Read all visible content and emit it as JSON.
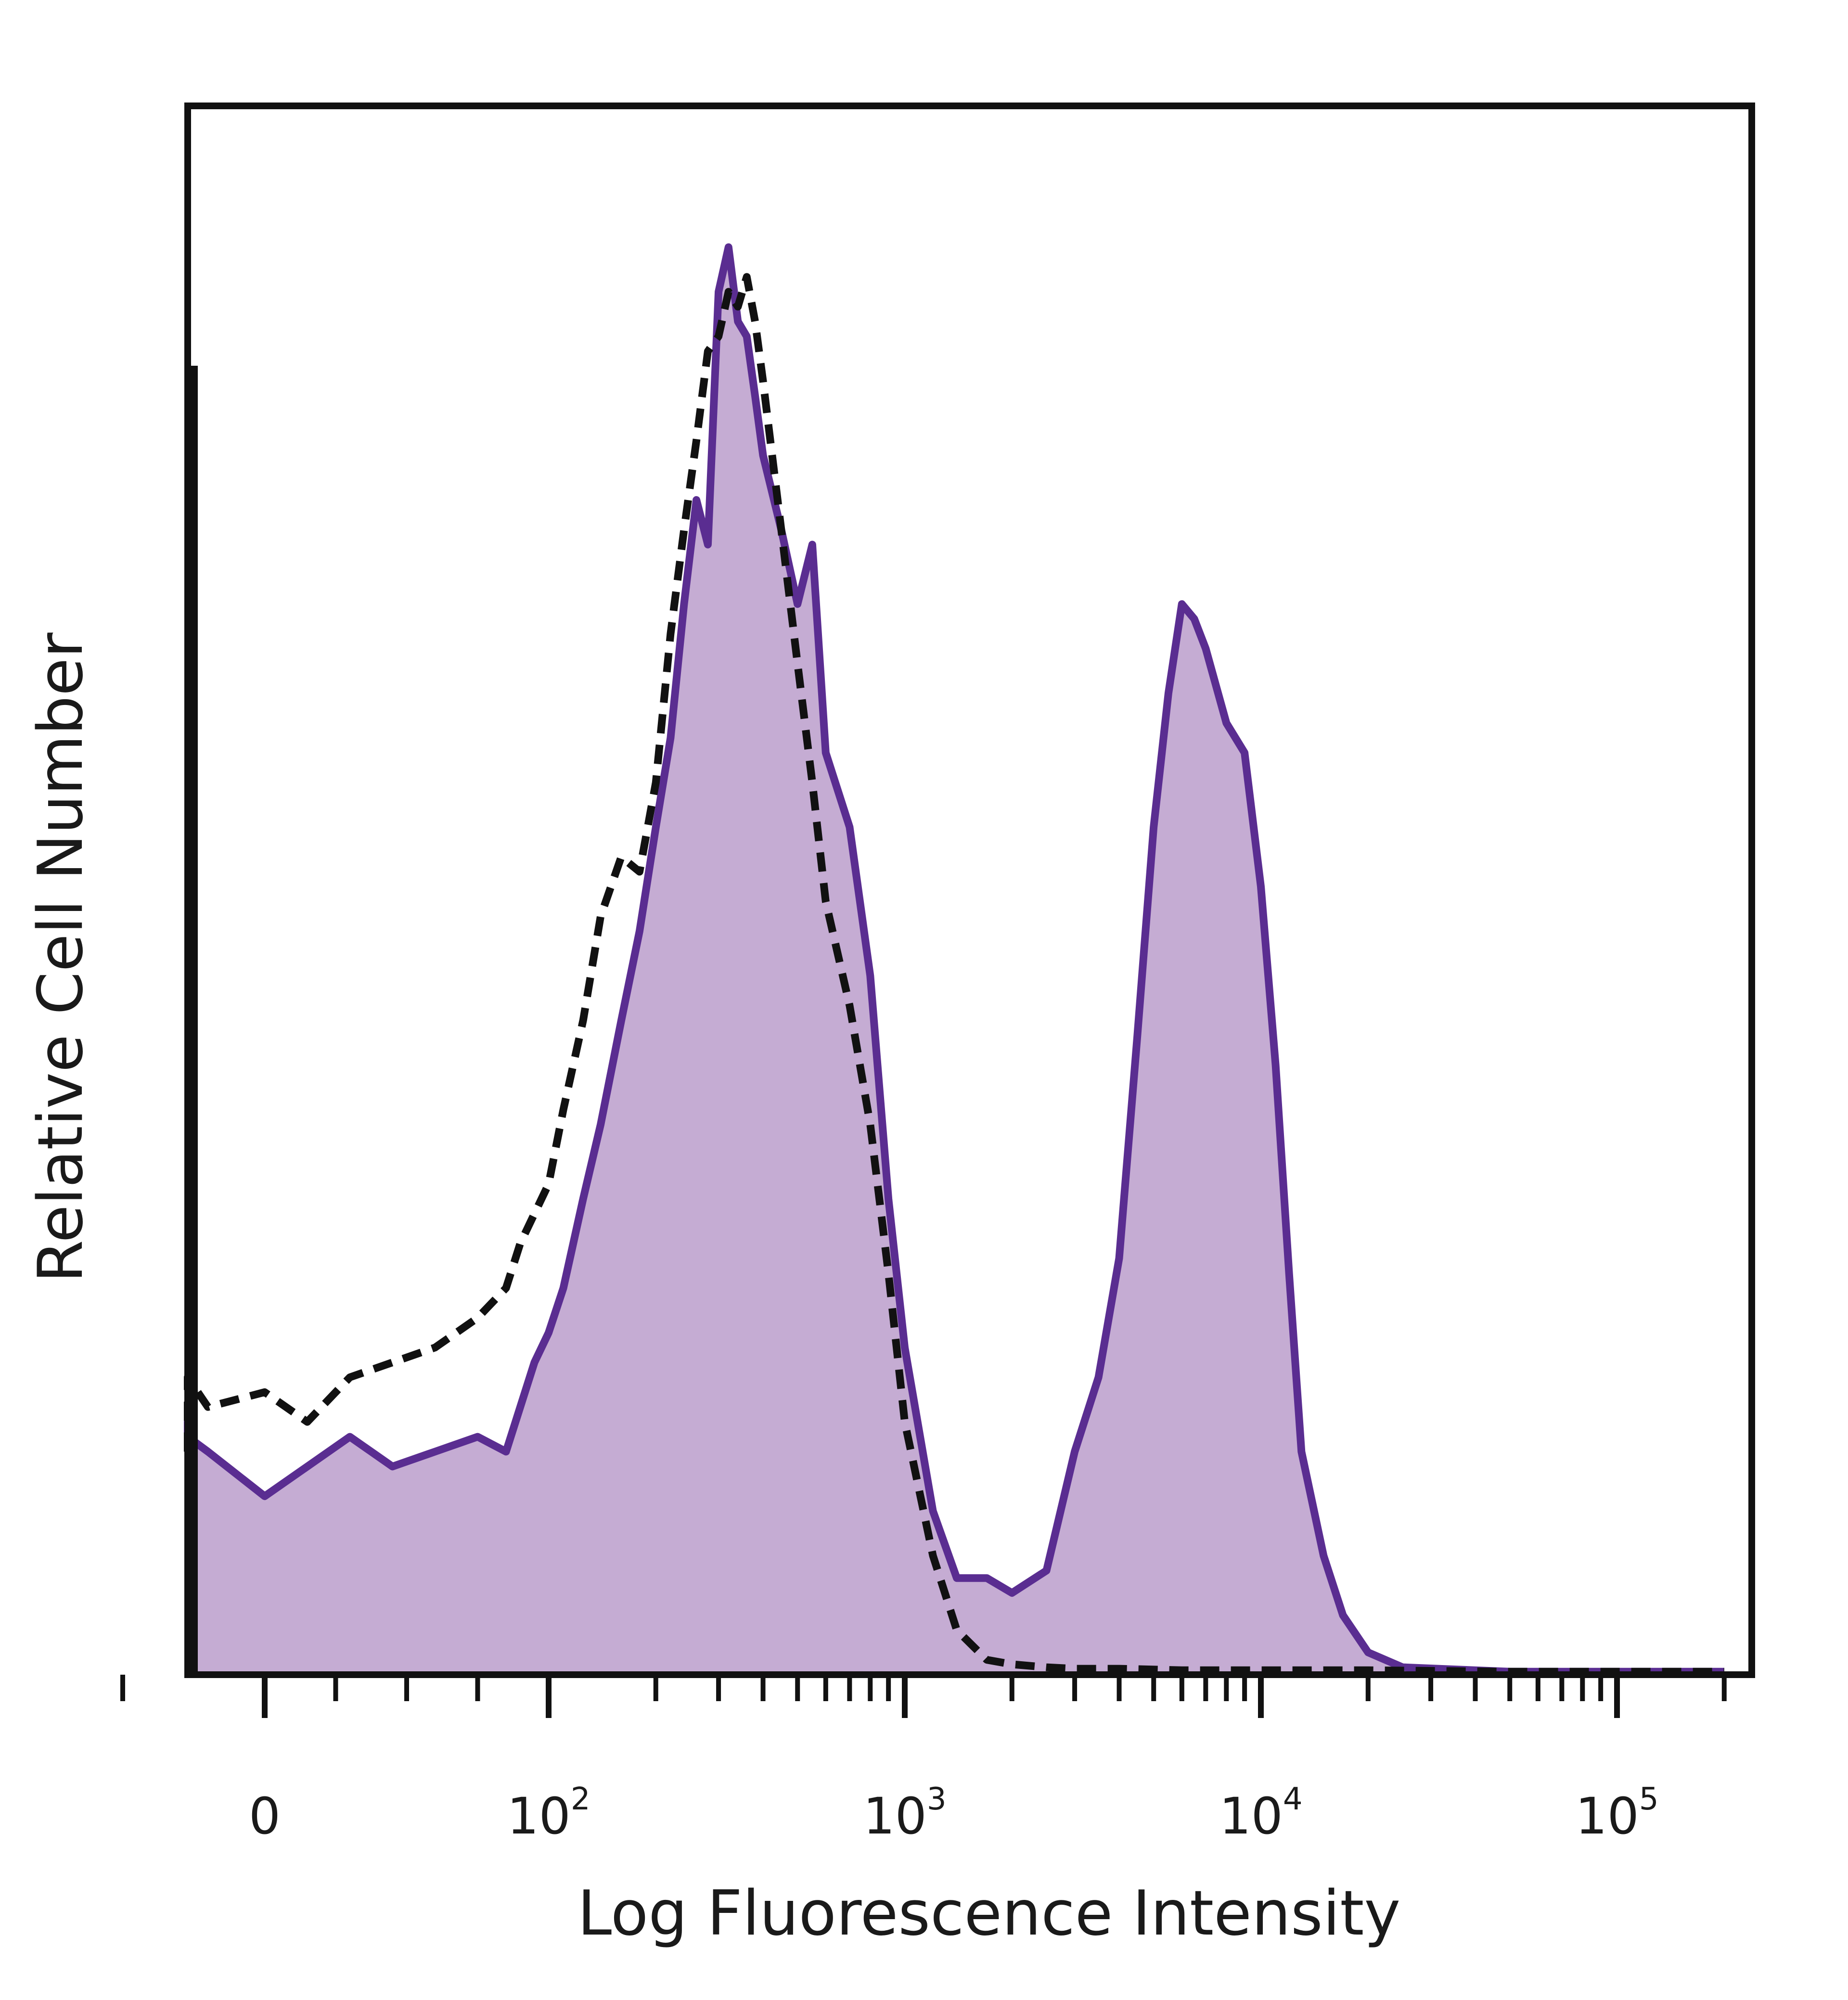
{
  "chart_data": {
    "type": "area",
    "title": "",
    "xlabel": "Log Fluorescence Intensity",
    "ylabel": "Relative Cell Number",
    "x_scale": "biexponential",
    "xlim": [
      -100,
      200000
    ],
    "ylim": [
      0,
      1.0
    ],
    "grid": false,
    "legend": "none",
    "x_ticks": [
      {
        "value": 0,
        "base": "0",
        "exp": ""
      },
      {
        "value": 100,
        "base": "10",
        "exp": "2"
      },
      {
        "value": 1000,
        "base": "10",
        "exp": "3"
      },
      {
        "value": 10000,
        "base": "10",
        "exp": "4"
      },
      {
        "value": 100000,
        "base": "10",
        "exp": "5"
      }
    ],
    "colors": {
      "stained_fill": "#c5acd3",
      "stained_line": "#5a2d91",
      "control_line": "#111111",
      "frame": "#111111"
    },
    "series": [
      {
        "style": "filled",
        "points": [
          [
            -100,
            0.15
          ],
          [
            -85,
            0.16
          ],
          [
            -60,
            0.17
          ],
          [
            -40,
            0.16
          ],
          [
            -20,
            0.15
          ],
          [
            0,
            0.12
          ],
          [
            15,
            0.14
          ],
          [
            30,
            0.16
          ],
          [
            45,
            0.14
          ],
          [
            60,
            0.15
          ],
          [
            75,
            0.16
          ],
          [
            85,
            0.15
          ],
          [
            90,
            0.18
          ],
          [
            95,
            0.21
          ],
          [
            100,
            0.23
          ],
          [
            110,
            0.26
          ],
          [
            125,
            0.32
          ],
          [
            140,
            0.37
          ],
          [
            160,
            0.44
          ],
          [
            180,
            0.5
          ],
          [
            200,
            0.57
          ],
          [
            220,
            0.63
          ],
          [
            240,
            0.72
          ],
          [
            260,
            0.79
          ],
          [
            280,
            0.76
          ],
          [
            300,
            0.93
          ],
          [
            320,
            0.96
          ],
          [
            340,
            0.91
          ],
          [
            360,
            0.9
          ],
          [
            380,
            0.86
          ],
          [
            400,
            0.82
          ],
          [
            450,
            0.77
          ],
          [
            500,
            0.72
          ],
          [
            550,
            0.76
          ],
          [
            600,
            0.62
          ],
          [
            700,
            0.57
          ],
          [
            800,
            0.47
          ],
          [
            900,
            0.32
          ],
          [
            1000,
            0.22
          ],
          [
            1200,
            0.11
          ],
          [
            1400,
            0.065
          ],
          [
            1700,
            0.065
          ],
          [
            2000,
            0.055
          ],
          [
            2500,
            0.07
          ],
          [
            3000,
            0.15
          ],
          [
            3500,
            0.2
          ],
          [
            4000,
            0.28
          ],
          [
            4500,
            0.43
          ],
          [
            5000,
            0.57
          ],
          [
            5500,
            0.66
          ],
          [
            6000,
            0.72
          ],
          [
            6500,
            0.71
          ],
          [
            7000,
            0.69
          ],
          [
            8000,
            0.64
          ],
          [
            9000,
            0.62
          ],
          [
            10000,
            0.53
          ],
          [
            11000,
            0.41
          ],
          [
            12000,
            0.27
          ],
          [
            13000,
            0.15
          ],
          [
            15000,
            0.08
          ],
          [
            17000,
            0.04
          ],
          [
            20000,
            0.015
          ],
          [
            25000,
            0.005
          ],
          [
            50000,
            0.002
          ],
          [
            100000,
            0.002
          ],
          [
            200000,
            0.002
          ]
        ]
      },
      {
        "style": "dashed",
        "points": [
          [
            -100,
            0.15
          ],
          [
            -85,
            0.17
          ],
          [
            -60,
            0.19
          ],
          [
            -40,
            0.2
          ],
          [
            -20,
            0.18
          ],
          [
            0,
            0.19
          ],
          [
            15,
            0.17
          ],
          [
            30,
            0.2
          ],
          [
            45,
            0.21
          ],
          [
            60,
            0.22
          ],
          [
            75,
            0.24
          ],
          [
            85,
            0.26
          ],
          [
            90,
            0.29
          ],
          [
            95,
            0.31
          ],
          [
            100,
            0.33
          ],
          [
            110,
            0.38
          ],
          [
            125,
            0.44
          ],
          [
            140,
            0.51
          ],
          [
            160,
            0.55
          ],
          [
            180,
            0.54
          ],
          [
            200,
            0.6
          ],
          [
            220,
            0.7
          ],
          [
            240,
            0.77
          ],
          [
            260,
            0.83
          ],
          [
            280,
            0.89
          ],
          [
            300,
            0.9
          ],
          [
            320,
            0.93
          ],
          [
            340,
            0.92
          ],
          [
            360,
            0.94
          ],
          [
            380,
            0.91
          ],
          [
            400,
            0.87
          ],
          [
            450,
            0.77
          ],
          [
            500,
            0.68
          ],
          [
            550,
            0.6
          ],
          [
            600,
            0.52
          ],
          [
            700,
            0.45
          ],
          [
            800,
            0.37
          ],
          [
            900,
            0.27
          ],
          [
            1000,
            0.17
          ],
          [
            1200,
            0.08
          ],
          [
            1400,
            0.03
          ],
          [
            1700,
            0.01
          ],
          [
            2000,
            0.007
          ],
          [
            2500,
            0.005
          ],
          [
            3000,
            0.004
          ],
          [
            4000,
            0.004
          ],
          [
            6000,
            0.003
          ],
          [
            10000,
            0.003
          ],
          [
            20000,
            0.003
          ],
          [
            50000,
            0.002
          ],
          [
            100000,
            0.002
          ],
          [
            200000,
            0.002
          ]
        ]
      }
    ]
  }
}
